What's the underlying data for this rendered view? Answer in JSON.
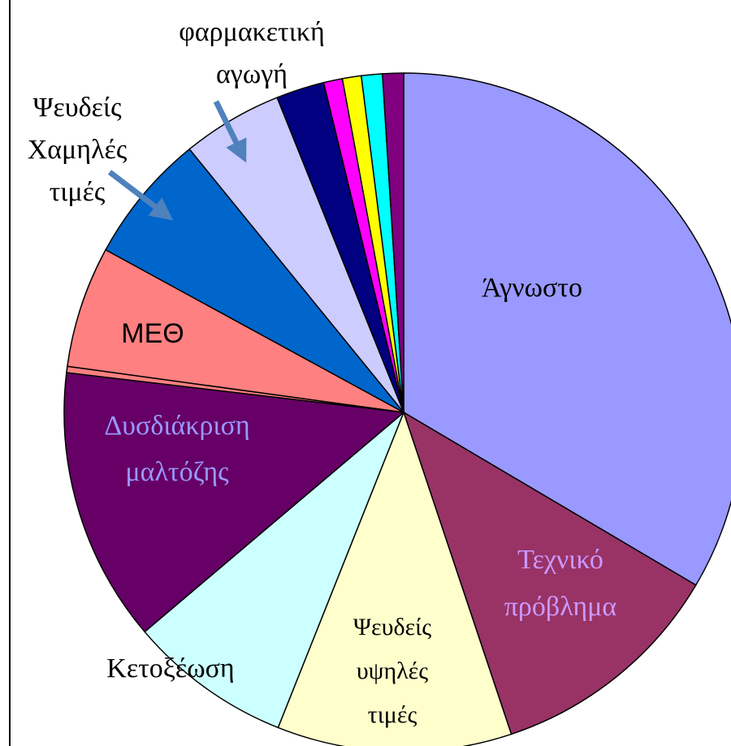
{
  "chart_data": {
    "type": "pie",
    "categories": [
      "Άγνωστο",
      "Τεχνικό πρόβλημα",
      "Ψευδείς υψηλές τιμές",
      "Κετοξέωση",
      "Δυσδιάκριση μαλτόζης",
      null,
      "ΜΕΘ",
      "Ψευδείς Χαμηλές τιμές",
      "φαρμακετική αγωγή",
      null,
      null,
      null,
      null,
      null
    ],
    "values": [
      33.6,
      11.4,
      11.2,
      7.8,
      13.1,
      0.3,
      5.8,
      6.2,
      4.8,
      2.3,
      0.9,
      0.9,
      1.0,
      1.0
    ],
    "colors": [
      "#9999ff",
      "#993366",
      "#ffffcc",
      "#ccffff",
      "#660066",
      "#ff8080",
      "#ff8080",
      "#0066cc",
      "#ccccff",
      "#000080",
      "#ff00ff",
      "#ffff00",
      "#00ffff",
      "#800080"
    ]
  }
}
